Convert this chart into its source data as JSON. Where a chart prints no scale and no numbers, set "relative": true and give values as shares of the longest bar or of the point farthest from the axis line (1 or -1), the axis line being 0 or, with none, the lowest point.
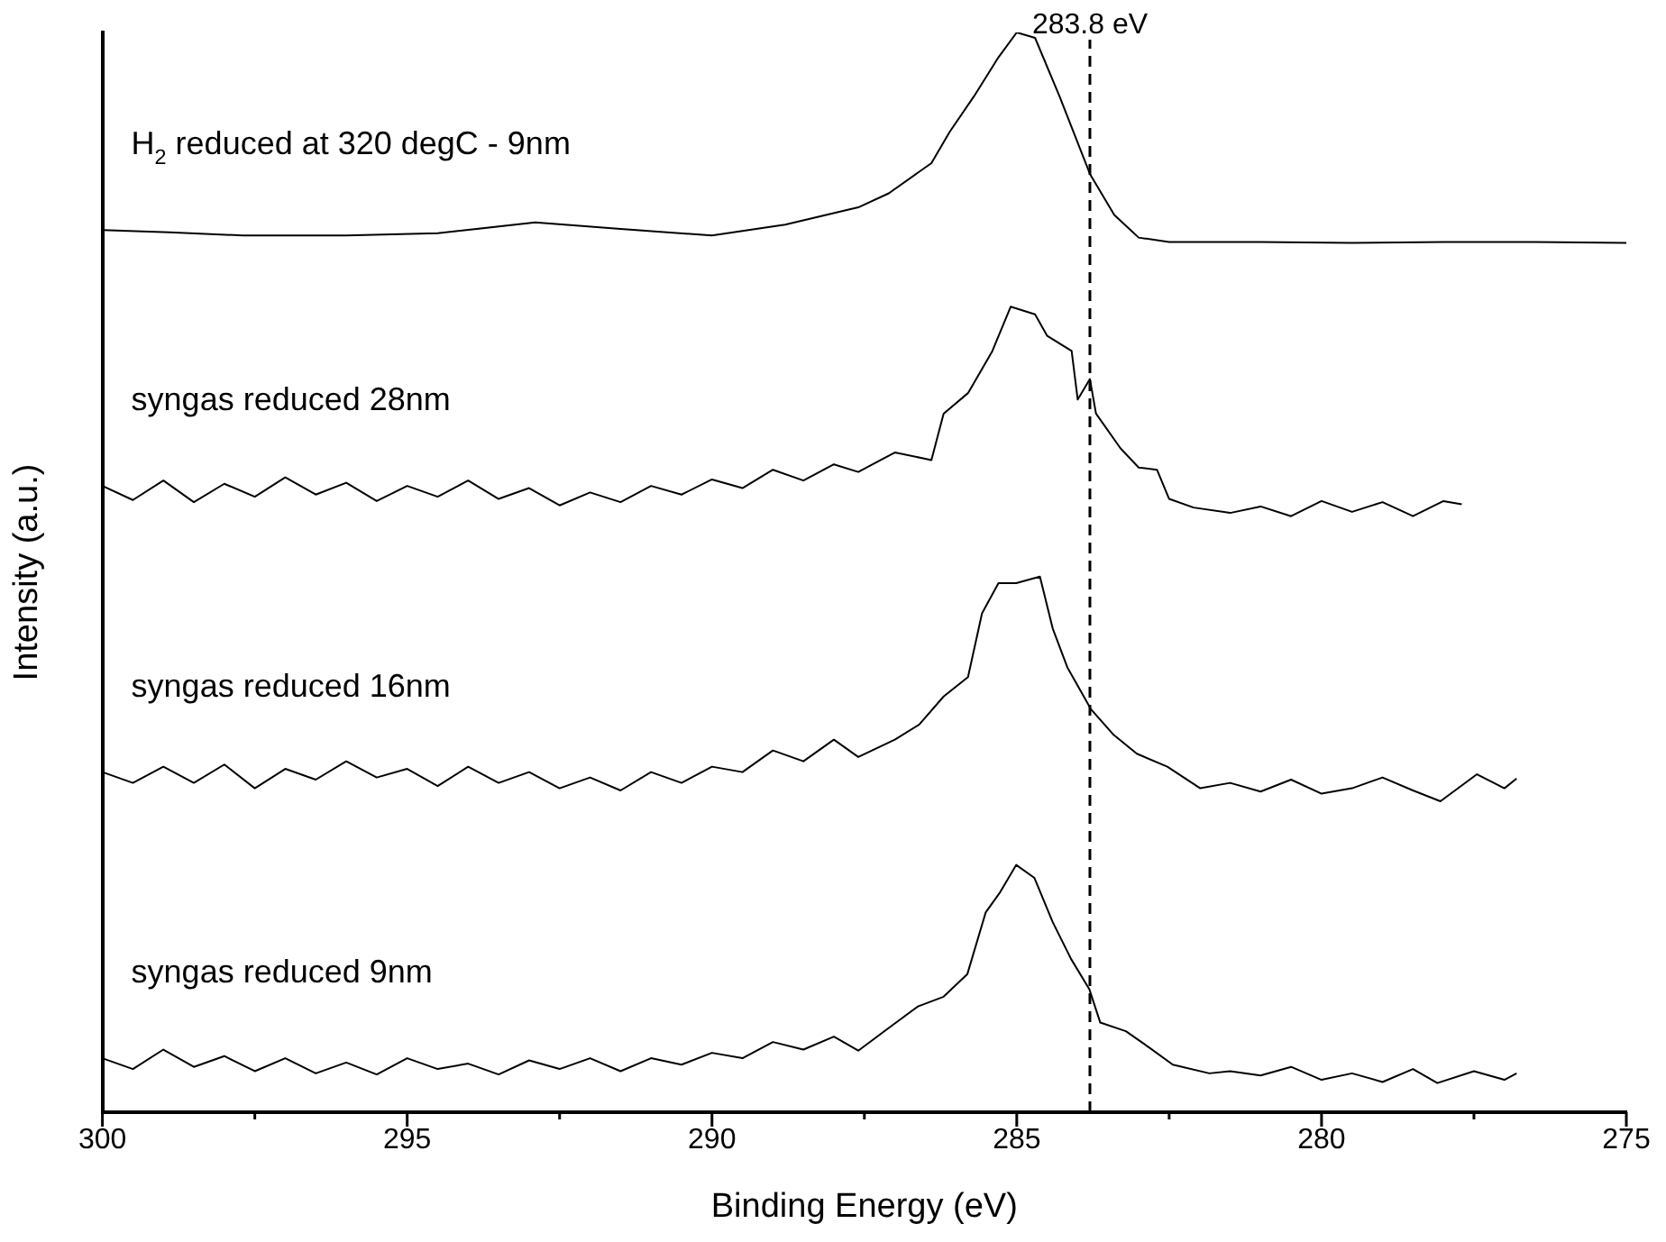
{
  "chart_data": {
    "type": "line",
    "relative": true,
    "xlabel": "Binding Energy (eV)",
    "ylabel": "Intensity (a.u.)",
    "xlim": [
      300,
      275
    ],
    "xticks": [
      300,
      {
        "value": 297.5,
        "label": null
      },
      295,
      {
        "value": 292.5,
        "label": null
      },
      290,
      {
        "value": 287.5,
        "label": null
      },
      285,
      {
        "value": 282.5,
        "label": null
      },
      280,
      {
        "value": 277.5,
        "label": null
      },
      275
    ],
    "grid": false,
    "legend": false,
    "marker": "none",
    "line_style": "solid",
    "ref_lines": [
      {
        "axis": "x",
        "value": 283.8,
        "label": "283.8 eV",
        "line_style": "dashed",
        "color": "#000000"
      }
    ],
    "series": [
      {
        "name": "H$_{2}$ reduced at 320 degC - 9nm",
        "color": "#000000",
        "x": [
          300,
          298.9,
          297.7,
          296,
          294.5,
          292.9,
          291.5,
          290,
          288.8,
          287.6,
          287.1,
          286.4,
          286.1,
          285.7,
          285.3,
          285.0,
          284.7,
          284.3,
          283.8,
          283.4,
          283.0,
          282.5,
          281,
          279.5,
          278,
          276.5,
          275
        ],
        "values": [
          0.817,
          0.815,
          0.812,
          0.812,
          0.814,
          0.824,
          0.818,
          0.812,
          0.822,
          0.838,
          0.851,
          0.879,
          0.908,
          0.941,
          0.977,
          1.0,
          0.995,
          0.941,
          0.869,
          0.831,
          0.81,
          0.806,
          0.806,
          0.805,
          0.806,
          0.806,
          0.805
        ]
      },
      {
        "name": "syngas reduced 28nm",
        "color": "#000000",
        "x": [
          300,
          299.5,
          299,
          298.5,
          298,
          297.5,
          297,
          296.5,
          296,
          295.5,
          295,
          294.5,
          294,
          293.5,
          293,
          292.5,
          292,
          291.5,
          291,
          290.5,
          290,
          289.5,
          289,
          288.5,
          288,
          287.6,
          287.0,
          286.4,
          286.2,
          285.8,
          285.4,
          285.1,
          284.7,
          284.5,
          284.1,
          284.0,
          283.8,
          283.7,
          283.3,
          283.0,
          282.7,
          282.5,
          282.1,
          281.5,
          281,
          280.5,
          280,
          279.5,
          279,
          278.5,
          278,
          277.7
        ],
        "values": [
          0.58,
          0.567,
          0.585,
          0.565,
          0.582,
          0.57,
          0.588,
          0.572,
          0.583,
          0.566,
          0.58,
          0.57,
          0.585,
          0.568,
          0.578,
          0.562,
          0.574,
          0.565,
          0.58,
          0.572,
          0.586,
          0.578,
          0.595,
          0.585,
          0.6,
          0.593,
          0.611,
          0.604,
          0.647,
          0.666,
          0.705,
          0.746,
          0.739,
          0.719,
          0.705,
          0.66,
          0.679,
          0.647,
          0.615,
          0.597,
          0.595,
          0.568,
          0.56,
          0.555,
          0.561,
          0.552,
          0.566,
          0.556,
          0.565,
          0.552,
          0.566,
          0.563
        ]
      },
      {
        "name": "syngas reduced 16nm",
        "color": "#000000",
        "x": [
          300,
          299.5,
          299,
          298.5,
          298,
          297.5,
          297,
          296.5,
          296,
          295.5,
          295,
          294.5,
          294,
          293.5,
          293,
          292.5,
          292,
          291.5,
          291,
          290.5,
          290,
          289.5,
          289,
          288.5,
          288,
          287.6,
          287.0,
          286.6,
          286.2,
          285.8,
          285.57,
          285.3,
          285.01,
          284.62,
          284.41,
          284.17,
          283.78,
          283.42,
          283.03,
          282.53,
          281.99,
          281.5,
          281,
          280.5,
          280,
          279.5,
          279,
          278.5,
          278.05,
          277.45,
          277,
          276.8
        ],
        "values": [
          0.315,
          0.305,
          0.32,
          0.305,
          0.322,
          0.3,
          0.318,
          0.308,
          0.325,
          0.31,
          0.318,
          0.302,
          0.32,
          0.305,
          0.315,
          0.3,
          0.31,
          0.298,
          0.315,
          0.305,
          0.32,
          0.315,
          0.335,
          0.325,
          0.345,
          0.329,
          0.345,
          0.359,
          0.385,
          0.403,
          0.462,
          0.49,
          0.49,
          0.496,
          0.448,
          0.412,
          0.373,
          0.35,
          0.332,
          0.32,
          0.3,
          0.305,
          0.297,
          0.308,
          0.295,
          0.3,
          0.31,
          0.298,
          0.288,
          0.313,
          0.3,
          0.309
        ]
      },
      {
        "name": "syngas reduced 9nm",
        "color": "#000000",
        "x": [
          300,
          299.5,
          299,
          298.5,
          298,
          297.5,
          297,
          296.5,
          296,
          295.5,
          295,
          294.5,
          294,
          293.5,
          293,
          292.5,
          292,
          291.5,
          291,
          290.5,
          290,
          289.5,
          289,
          288.5,
          288,
          287.6,
          287.1,
          286.62,
          286.2,
          285.81,
          285.51,
          285.27,
          285.01,
          284.71,
          284.41,
          284.11,
          283.81,
          283.63,
          283.21,
          282.83,
          282.44,
          281.84,
          281.5,
          281,
          280.5,
          280,
          279.5,
          279,
          278.5,
          278.1,
          277.5,
          277,
          276.8
        ],
        "values": [
          0.05,
          0.04,
          0.058,
          0.042,
          0.052,
          0.038,
          0.05,
          0.036,
          0.046,
          0.035,
          0.05,
          0.04,
          0.045,
          0.035,
          0.048,
          0.04,
          0.05,
          0.038,
          0.05,
          0.044,
          0.055,
          0.05,
          0.065,
          0.058,
          0.07,
          0.057,
          0.078,
          0.098,
          0.107,
          0.128,
          0.185,
          0.204,
          0.229,
          0.217,
          0.176,
          0.142,
          0.114,
          0.083,
          0.075,
          0.06,
          0.044,
          0.036,
          0.038,
          0.034,
          0.042,
          0.03,
          0.036,
          0.028,
          0.04,
          0.027,
          0.038,
          0.03,
          0.036
        ]
      }
    ]
  }
}
